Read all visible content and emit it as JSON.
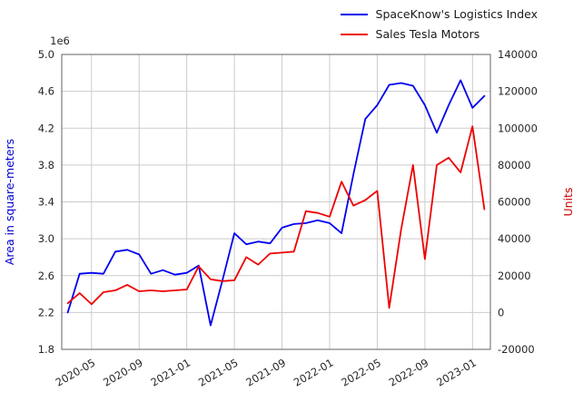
{
  "chart_data": {
    "type": "line",
    "title": "",
    "grid": true,
    "legend_position": "upper-right",
    "x": [
      "2020-03",
      "2020-04",
      "2020-05",
      "2020-06",
      "2020-07",
      "2020-08",
      "2020-09",
      "2020-10",
      "2020-11",
      "2020-12",
      "2021-01",
      "2021-02",
      "2021-03",
      "2021-04",
      "2021-05",
      "2021-06",
      "2021-07",
      "2021-08",
      "2021-09",
      "2021-10",
      "2021-11",
      "2021-12",
      "2022-01",
      "2022-02",
      "2022-03",
      "2022-04",
      "2022-05",
      "2022-06",
      "2022-07",
      "2022-08",
      "2022-09",
      "2022-10",
      "2022-11",
      "2022-12",
      "2023-01",
      "2023-02"
    ],
    "x_ticks": [
      "2020-05",
      "2020-09",
      "2021-01",
      "2021-05",
      "2021-09",
      "2022-01",
      "2022-05",
      "2022-09",
      "2023-01"
    ],
    "series": [
      {
        "name": "SpaceKnow's Logistics Index",
        "axis": "left",
        "color": "#0000ee",
        "values": [
          2.2,
          2.62,
          2.63,
          2.62,
          2.86,
          2.88,
          2.83,
          2.62,
          2.66,
          2.61,
          2.63,
          2.71,
          2.06,
          2.55,
          3.06,
          2.94,
          2.97,
          2.95,
          3.12,
          3.16,
          3.17,
          3.2,
          3.17,
          3.06,
          3.7,
          4.3,
          4.45,
          4.67,
          4.69,
          4.66,
          4.45,
          4.15,
          4.45,
          4.72,
          4.42,
          4.55
        ]
      },
      {
        "name": "Sales Tesla Motors",
        "axis": "right",
        "color": "#ee0000",
        "values": [
          5000,
          10500,
          4500,
          11000,
          12000,
          15000,
          11500,
          12000,
          11500,
          12000,
          12500,
          25000,
          18000,
          17000,
          17500,
          30000,
          26000,
          32000,
          32500,
          33000,
          55000,
          54000,
          52000,
          71000,
          58000,
          61000,
          66000,
          2500,
          45000,
          80000,
          29000,
          80000,
          84000,
          76000,
          101000,
          56000
        ]
      }
    ],
    "left_axis": {
      "label": "Area in square-meters",
      "color": "#0000cc",
      "offset_text": "1e6",
      "lim": [
        1.8,
        5.0
      ],
      "ticks": [
        1.8,
        2.2,
        2.6,
        3.0,
        3.4,
        3.8,
        4.2,
        4.6,
        5.0
      ]
    },
    "right_axis": {
      "label": "Units",
      "color": "#cc0000",
      "lim": [
        -20000,
        140000
      ],
      "ticks": [
        -20000,
        0,
        20000,
        40000,
        60000,
        80000,
        100000,
        120000,
        140000
      ]
    },
    "colors": {
      "grid": "#cccccc",
      "spine": "#555555",
      "tick_text": "#262626"
    }
  }
}
